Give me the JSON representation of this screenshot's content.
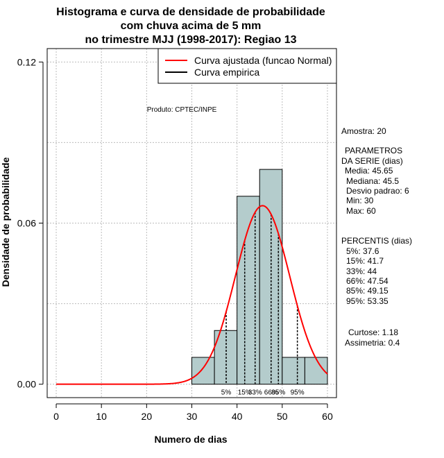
{
  "chart_data": {
    "type": "bar",
    "title_lines": [
      "Histograma e curva de densidade de probabilidade",
      "com chuva acima de 5 mm",
      "no trimestre MJJ (1998-2017): Regiao 13"
    ],
    "xlabel": "Numero de dias",
    "ylabel": "Densidade de probabilidade",
    "xlim": [
      -2,
      62
    ],
    "ylim": [
      -0.005,
      0.125
    ],
    "x_ticks": [
      0,
      10,
      20,
      30,
      40,
      50,
      60
    ],
    "y_ticks": [
      0.0,
      0.06,
      0.12
    ],
    "y_tick_labels": [
      "0.00",
      "0.06",
      "0.12"
    ],
    "grid": true,
    "bins": [
      {
        "start": 30,
        "end": 35,
        "density": 0.01
      },
      {
        "start": 35,
        "end": 40,
        "density": 0.02
      },
      {
        "start": 40,
        "end": 45,
        "density": 0.07
      },
      {
        "start": 45,
        "end": 50,
        "density": 0.08
      },
      {
        "start": 50,
        "end": 55,
        "density": 0.01
      },
      {
        "start": 55,
        "end": 60,
        "density": 0.01
      }
    ],
    "normal_fit": {
      "mean": 45.65,
      "sd": 6,
      "x_range": [
        0,
        60
      ]
    },
    "percentile_lines": [
      {
        "x": 37.6,
        "label": "5%"
      },
      {
        "x": 41.7,
        "label": "15%"
      },
      {
        "x": 44,
        "label": "33%"
      },
      {
        "x": 47.54,
        "label": "66%"
      },
      {
        "x": 49.15,
        "label": "85%"
      },
      {
        "x": 53.35,
        "label": "95%"
      }
    ],
    "legend": [
      {
        "label": "Curva ajustada (funcao Normal)",
        "color": "#ff0000"
      },
      {
        "label": "Curva empirica",
        "color": "#000000"
      }
    ],
    "legend_position": "top-right",
    "annotation": "Produto: CPTEC/INPE",
    "colors": {
      "bar_fill": "#b4cccc",
      "curve": "#ff0000",
      "grid": "#bbbbbb"
    }
  },
  "side_panel": {
    "sample": "Amostra: 20",
    "params_header_1": "PARAMETROS",
    "params_header_2": "DA SERIE (dias)",
    "media": "Media: 45.65",
    "mediana": "Mediana: 45.5",
    "desvio": "Desvio padrao: 6",
    "min": "Min: 30",
    "max": "Max: 60",
    "perc_header": "PERCENTIS (dias)",
    "p5": "5%: 37.6",
    "p15": "15%: 41.7",
    "p33": "33%: 44",
    "p66": "66%: 47.54",
    "p85": "85%: 49.15",
    "p95": "95%: 53.35",
    "curtose": "Curtose: 1.18",
    "assimetria": "Assimetria: 0.4"
  }
}
